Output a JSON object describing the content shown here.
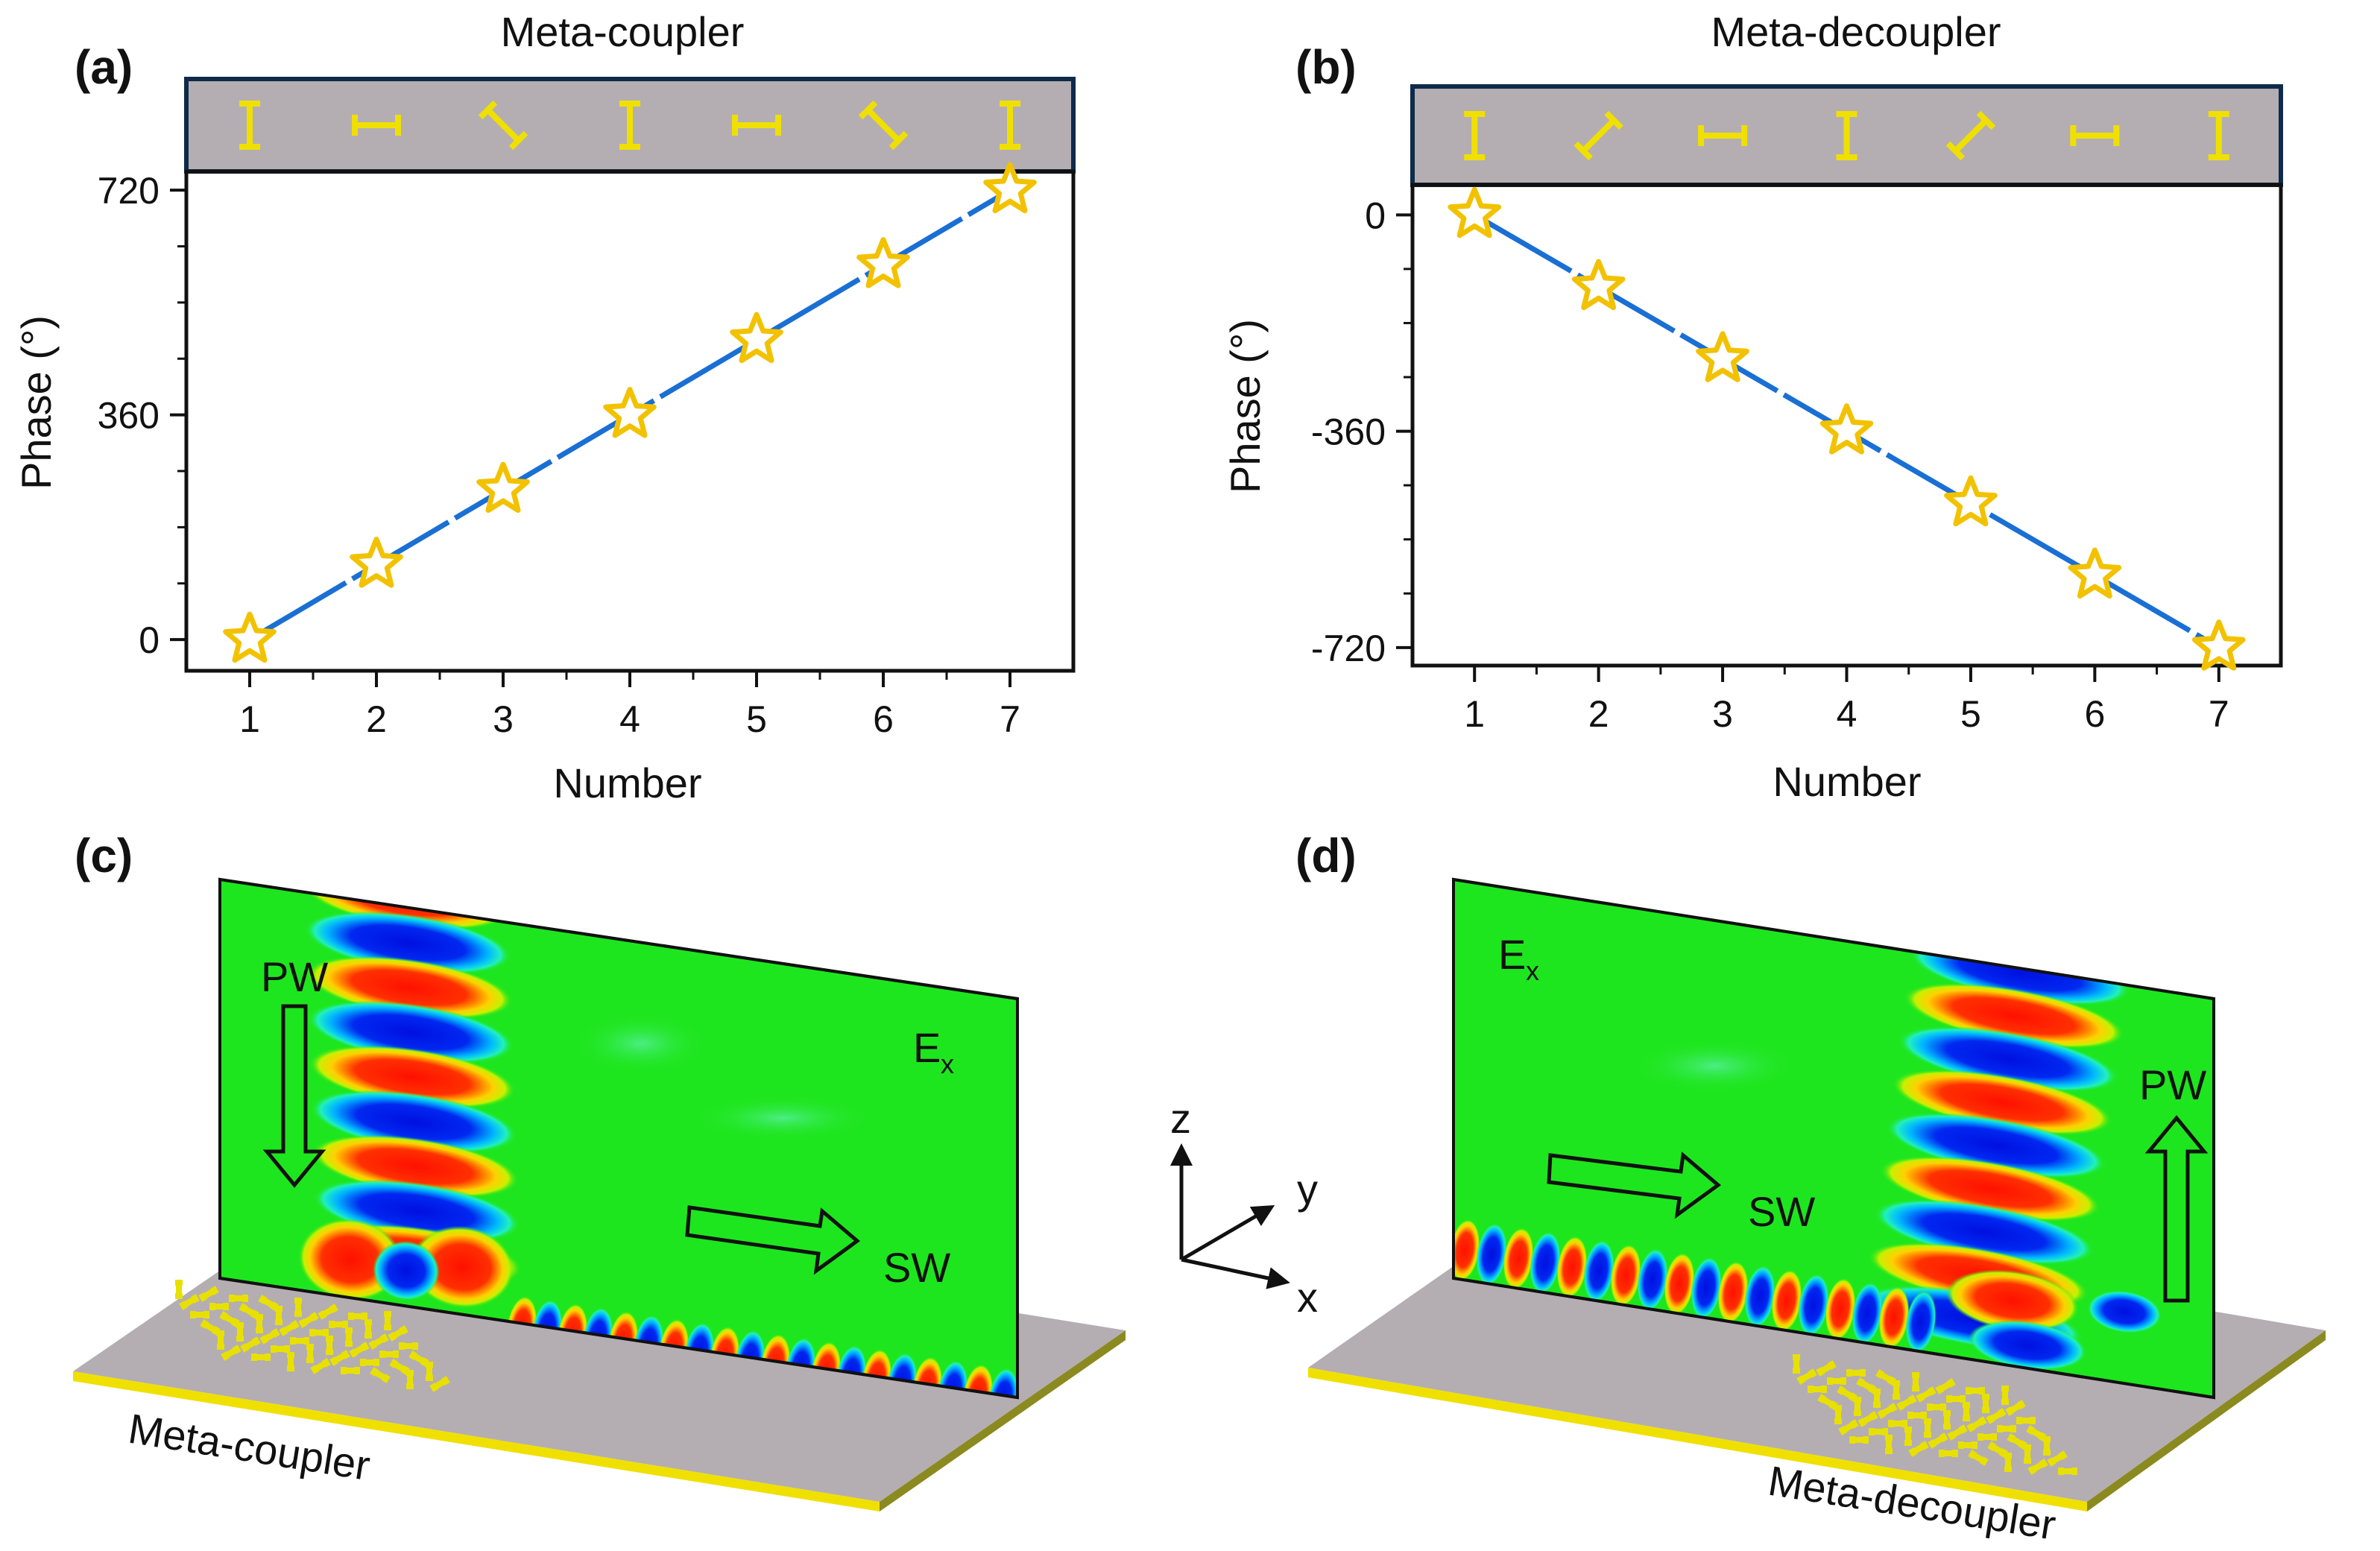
{
  "chart_data": [
    {
      "type": "line",
      "panel_label": "(a)",
      "title": "Meta-coupler",
      "xlabel": "Number",
      "ylabel": "Phase (°)",
      "x": [
        1,
        2,
        3,
        4,
        5,
        6,
        7
      ],
      "values": [
        0,
        120,
        240,
        360,
        480,
        600,
        720
      ],
      "xlim": [
        0.5,
        7.5
      ],
      "ylim": [
        -50,
        750
      ],
      "yticks": [
        0,
        360,
        720
      ],
      "ytick_labels": [
        "0",
        "360",
        "720"
      ],
      "xtick_labels": [
        "1",
        "2",
        "3",
        "4",
        "5",
        "6",
        "7"
      ],
      "element_angles_deg": [
        0,
        90,
        135,
        0,
        90,
        135,
        0
      ],
      "marker": "star",
      "line_color": "#1a6fd4",
      "marker_color": "#f2c200"
    },
    {
      "type": "line",
      "panel_label": "(b)",
      "title": "Meta-decoupler",
      "xlabel": "Number",
      "ylabel": "Phase (°)",
      "x": [
        1,
        2,
        3,
        4,
        5,
        6,
        7
      ],
      "values": [
        0,
        -120,
        -240,
        -360,
        -480,
        -600,
        -720
      ],
      "xlim": [
        0.5,
        7.5
      ],
      "ylim": [
        -750,
        50
      ],
      "yticks": [
        0,
        -360,
        -720
      ],
      "ytick_labels": [
        "0",
        "-360",
        "-720"
      ],
      "xtick_labels": [
        "1",
        "2",
        "3",
        "4",
        "5",
        "6",
        "7"
      ],
      "element_angles_deg": [
        0,
        45,
        90,
        0,
        45,
        90,
        0
      ],
      "marker": "star",
      "line_color": "#1a6fd4",
      "marker_color": "#f2c200"
    }
  ],
  "scenes": {
    "c": {
      "panel_label": "(c)",
      "field_label": "E",
      "field_subscript": "x",
      "input_wave": "PW",
      "output_wave": "SW",
      "device_label": "Meta-coupler"
    },
    "d": {
      "panel_label": "(d)",
      "field_label": "E",
      "field_subscript": "x",
      "input_wave": "SW",
      "output_wave": "PW",
      "device_label": "Meta-decoupler"
    }
  },
  "axes_triad": {
    "z": "z",
    "y": "y",
    "x": "x"
  },
  "colors": {
    "field_bg": "#1ee61e",
    "positive": "#ff1a00",
    "negative": "#0a1ee6",
    "substrate": "#b4aeb2",
    "gold": "#f0e000",
    "frame": "#0f2a4a"
  }
}
